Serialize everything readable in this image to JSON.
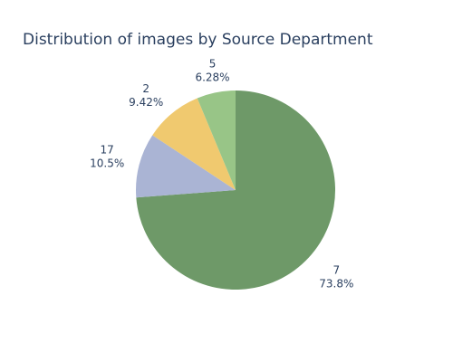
{
  "colors": {
    "title": "#2a3f5f",
    "label": "#2a3f5f",
    "slice_edge": "#ffffff"
  },
  "chart_data": {
    "type": "pie",
    "title": "Distribution of images by Source Department",
    "start_angle_deg": 90,
    "direction": "clockwise",
    "sort": "descending",
    "slices": [
      {
        "label": "7",
        "percent_text": "73.8%",
        "value": 73.8,
        "color": "#6e9968"
      },
      {
        "label": "5",
        "percent_text": "6.28%",
        "value": 6.28,
        "color": "#98c587"
      },
      {
        "label": "2",
        "percent_text": "9.42%",
        "value": 9.42,
        "color": "#f0c96f"
      },
      {
        "label": "17",
        "percent_text": "10.5%",
        "value": 10.5,
        "color": "#aab4d4"
      }
    ],
    "legend": "none"
  }
}
